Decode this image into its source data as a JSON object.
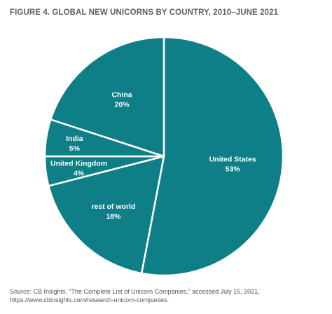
{
  "chart_data": {
    "type": "pie",
    "title": "FIGURE 4. GLOBAL NEW UNICORNS BY COUNTRY, 2010–JUNE 2021",
    "slices": [
      {
        "label": "United States",
        "value": 53,
        "value_label": "53%"
      },
      {
        "label": "rest of world",
        "value": 18,
        "value_label": "18%"
      },
      {
        "label": "United Kingdom",
        "value": 4,
        "value_label": "4%"
      },
      {
        "label": "India",
        "value": 5,
        "value_label": "5%"
      },
      {
        "label": "China",
        "value": 20,
        "value_label": "20%"
      }
    ],
    "slice_color": "#0e7f86",
    "border_color": "#ffffff",
    "start": "top",
    "direction": "clockwise"
  },
  "source": {
    "line1": "Source: CB Insights, “The Complete List of Unicorn Companies,” accessed July 15, 2021,",
    "line2": "https://www.cbinsights.com/research-unicorn-companies."
  }
}
